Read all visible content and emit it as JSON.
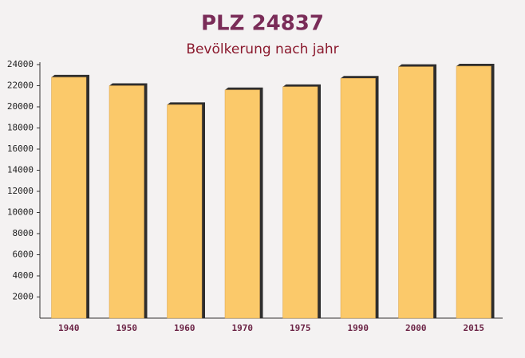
{
  "chart_data": {
    "type": "bar",
    "title": "PLZ 24837",
    "subtitle": "Bevölkerung nach jahr",
    "categories": [
      "1940",
      "1950",
      "1960",
      "1970",
      "1975",
      "1990",
      "2000",
      "2015"
    ],
    "values": [
      22800,
      22000,
      20200,
      21600,
      21900,
      22700,
      23800,
      23850
    ],
    "color": "#fbc96a",
    "ylim": [
      0,
      24000
    ],
    "yticks": [
      2000,
      4000,
      6000,
      8000,
      10000,
      12000,
      14000,
      16000,
      18000,
      20000,
      22000,
      24000
    ]
  }
}
